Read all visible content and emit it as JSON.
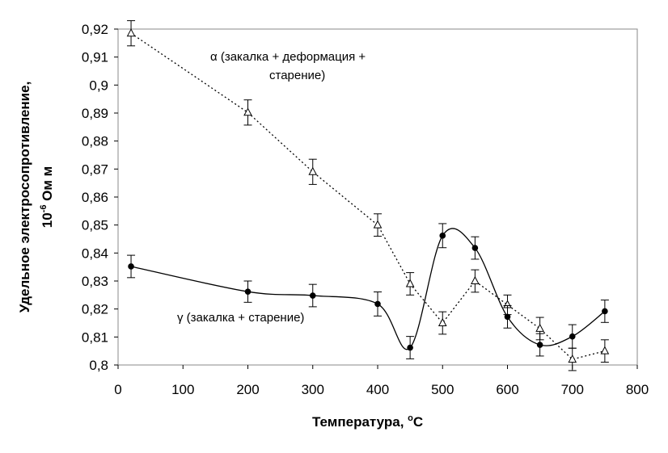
{
  "chart_data": {
    "type": "line",
    "title": "",
    "xlabel_main": "Температура, ",
    "xlabel_sup": "o",
    "xlabel_unit": "C",
    "ylabel_line1": "Удельное электросопротивление,",
    "ylabel_line2_base": "10",
    "ylabel_line2_sup": "-6",
    "ylabel_line2_unit": " Ом м",
    "xlim": [
      0,
      800
    ],
    "ylim": [
      0.8,
      0.92
    ],
    "x_ticks": [
      0,
      100,
      200,
      300,
      400,
      500,
      600,
      700,
      800
    ],
    "x_tick_labels": [
      "0",
      "100",
      "200",
      "300",
      "400",
      "500",
      "600",
      "700",
      "800"
    ],
    "y_ticks": [
      0.8,
      0.81,
      0.82,
      0.83,
      0.84,
      0.85,
      0.86,
      0.87,
      0.88,
      0.89,
      0.9,
      0.91,
      0.92
    ],
    "y_tick_labels": [
      "0,8",
      "0,81",
      "0,82",
      "0,83",
      "0,84",
      "0,85",
      "0,86",
      "0,87",
      "0,88",
      "0,89",
      "0,9",
      "0,91",
      "0,92"
    ],
    "grid": false,
    "series": [
      {
        "marker": "triangle",
        "line_style": "dotted",
        "color": "#000000",
        "x": [
          20,
          200,
          300,
          400,
          450,
          500,
          550,
          600,
          650,
          700,
          750
        ],
        "y": [
          0.9185,
          0.8902,
          0.869,
          0.85,
          0.829,
          0.815,
          0.83,
          0.8215,
          0.813,
          0.802,
          0.805
        ],
        "err": [
          0.0045,
          0.0045,
          0.0045,
          0.004,
          0.004,
          0.004,
          0.004,
          0.0035,
          0.004,
          0.004,
          0.004
        ]
      },
      {
        "marker": "circle",
        "line_style": "solid",
        "color": "#000000",
        "x": [
          20,
          200,
          300,
          400,
          450,
          500,
          550,
          600,
          650,
          700,
          750
        ],
        "y": [
          0.8352,
          0.8262,
          0.8248,
          0.8218,
          0.8062,
          0.8462,
          0.8418,
          0.8172,
          0.8072,
          0.8102,
          0.8192
        ],
        "err": [
          0.004,
          0.0038,
          0.004,
          0.0043,
          0.004,
          0.0043,
          0.004,
          0.004,
          0.004,
          0.0042,
          0.004
        ]
      }
    ],
    "annotations": [
      {
        "symbol": "α",
        "line1": " (закалка + деформация +",
        "line2": "старение)"
      },
      {
        "symbol": "γ",
        "line1": " (закалка + старение)"
      }
    ]
  }
}
